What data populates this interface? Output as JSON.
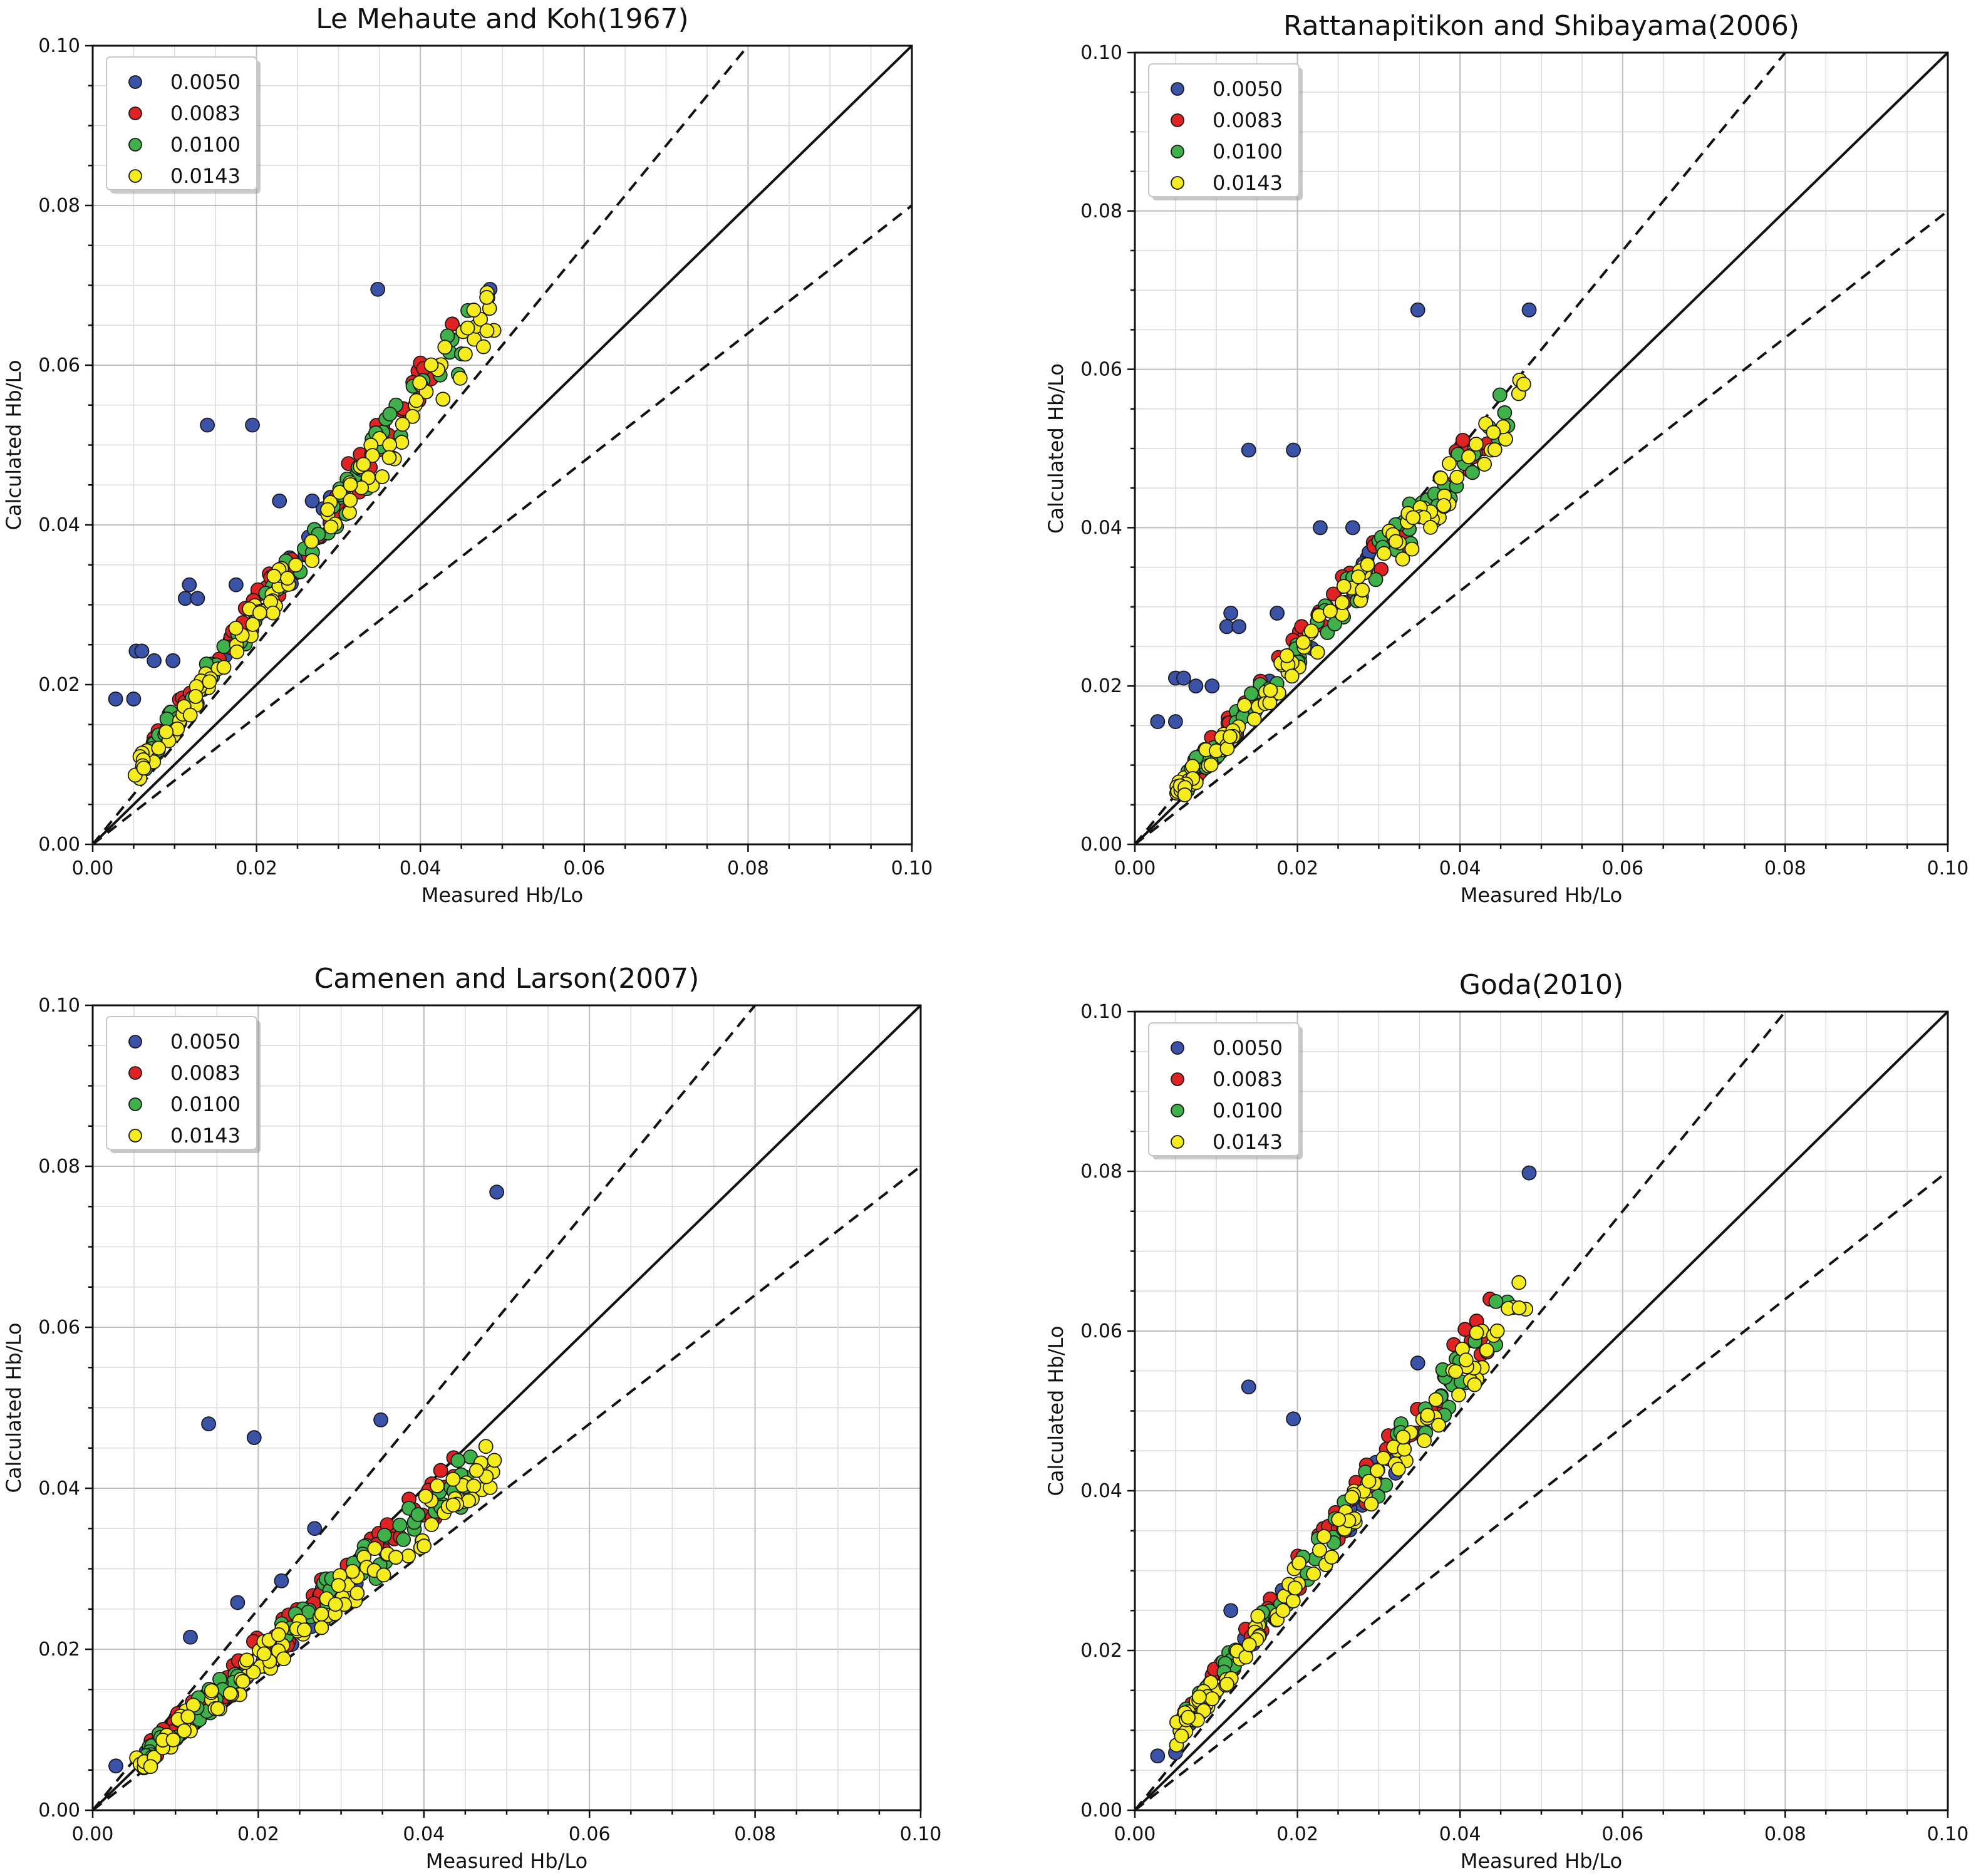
{
  "colors": {
    "s0050": "#3a52a8",
    "s0083": "#e02222",
    "s0100": "#3fb14a",
    "s0143": "#f5ec1e"
  },
  "chart_data": [
    {
      "type": "scatter",
      "title": "Le Mehaute and Koh(1967)",
      "xlabel": "Measured Hb/Lo",
      "ylabel": "Calculated Hb/Lo",
      "xlim": [
        0,
        0.1
      ],
      "ylim": [
        0,
        0.1
      ],
      "x_ticks": [
        "0.00",
        "0.02",
        "0.04",
        "0.06",
        "0.08",
        "0.10"
      ],
      "y_ticks": [
        "0.00",
        "0.02",
        "0.04",
        "0.06",
        "0.08",
        "0.10"
      ],
      "legend": [
        "0.0050",
        "0.0083",
        "0.0100",
        "0.0143"
      ],
      "legend_position": "upper-left",
      "reference_lines": [
        {
          "style": "solid",
          "slope": 1.0
        },
        {
          "style": "dashed",
          "slope": 1.25
        },
        {
          "style": "dashed",
          "slope": 0.8
        }
      ],
      "trend": {
        "slope": 1.35,
        "offset": 0.002
      },
      "outliers": [
        [
          0.0028,
          0.0182
        ],
        [
          0.005,
          0.0182
        ],
        [
          0.0053,
          0.0242
        ],
        [
          0.006,
          0.0242
        ],
        [
          0.0075,
          0.023
        ],
        [
          0.0098,
          0.023
        ],
        [
          0.0118,
          0.0325
        ],
        [
          0.0113,
          0.0308
        ],
        [
          0.0128,
          0.0308
        ],
        [
          0.0175,
          0.0325
        ],
        [
          0.014,
          0.0525
        ],
        [
          0.0195,
          0.0525
        ],
        [
          0.0228,
          0.043
        ],
        [
          0.0268,
          0.043
        ],
        [
          0.0348,
          0.0695
        ],
        [
          0.0485,
          0.0695
        ]
      ],
      "series": [
        {
          "name": "0.0050",
          "count": 22
        },
        {
          "name": "0.0083",
          "count": 70
        },
        {
          "name": "0.0100",
          "count": 80
        },
        {
          "name": "0.0143",
          "count": 110
        }
      ]
    },
    {
      "type": "scatter",
      "title": "Rattanapitikon and Shibayama(2006)",
      "xlabel": "Measured Hb/Lo",
      "ylabel": "Calculated Hb/Lo",
      "xlim": [
        0,
        0.1
      ],
      "ylim": [
        0,
        0.1
      ],
      "x_ticks": [
        "0.00",
        "0.02",
        "0.04",
        "0.06",
        "0.08",
        "0.10"
      ],
      "y_ticks": [
        "0.00",
        "0.02",
        "0.04",
        "0.06",
        "0.08",
        "0.10"
      ],
      "legend": [
        "0.0050",
        "0.0083",
        "0.0100",
        "0.0143"
      ],
      "legend_position": "upper-left",
      "reference_lines": [
        {
          "style": "solid",
          "slope": 1.0
        },
        {
          "style": "dashed",
          "slope": 1.25
        },
        {
          "style": "dashed",
          "slope": 0.8
        }
      ],
      "trend": {
        "slope": 1.18,
        "offset": 0.0005
      },
      "outliers": [
        [
          0.0028,
          0.0155
        ],
        [
          0.005,
          0.0155
        ],
        [
          0.005,
          0.021
        ],
        [
          0.006,
          0.021
        ],
        [
          0.0075,
          0.02
        ],
        [
          0.0095,
          0.02
        ],
        [
          0.0118,
          0.0292
        ],
        [
          0.0113,
          0.0275
        ],
        [
          0.0128,
          0.0275
        ],
        [
          0.0175,
          0.0292
        ],
        [
          0.014,
          0.0498
        ],
        [
          0.0195,
          0.0498
        ],
        [
          0.0228,
          0.04
        ],
        [
          0.0268,
          0.04
        ],
        [
          0.0348,
          0.0675
        ],
        [
          0.0485,
          0.0675
        ]
      ],
      "series": [
        {
          "name": "0.0050",
          "count": 22
        },
        {
          "name": "0.0083",
          "count": 70
        },
        {
          "name": "0.0100",
          "count": 80
        },
        {
          "name": "0.0143",
          "count": 110
        }
      ]
    },
    {
      "type": "scatter",
      "title": "Camenen and Larson(2007)",
      "xlabel": "Measured Hb/Lo",
      "ylabel": "Calculated Hb/Lo",
      "xlim": [
        0,
        0.1
      ],
      "ylim": [
        0,
        0.1
      ],
      "x_ticks": [
        "0.00",
        "0.02",
        "0.04",
        "0.06",
        "0.08",
        "0.10"
      ],
      "y_ticks": [
        "0.00",
        "0.02",
        "0.04",
        "0.06",
        "0.08",
        "0.10"
      ],
      "legend": [
        "0.0050",
        "0.0083",
        "0.0100",
        "0.0143"
      ],
      "legend_position": "upper-left",
      "reference_lines": [
        {
          "style": "solid",
          "slope": 1.0
        },
        {
          "style": "dashed",
          "slope": 1.25
        },
        {
          "style": "dashed",
          "slope": 0.8
        }
      ],
      "trend": {
        "slope": 0.9,
        "offset": 0.0008
      },
      "outliers": [
        [
          0.0028,
          0.0055
        ],
        [
          0.0118,
          0.0215
        ],
        [
          0.0175,
          0.0258
        ],
        [
          0.0228,
          0.0285
        ],
        [
          0.0268,
          0.035
        ],
        [
          0.014,
          0.048
        ],
        [
          0.0195,
          0.0463
        ],
        [
          0.0348,
          0.0485
        ],
        [
          0.0488,
          0.0768
        ]
      ],
      "series": [
        {
          "name": "0.0050",
          "count": 22
        },
        {
          "name": "0.0083",
          "count": 70
        },
        {
          "name": "0.0100",
          "count": 80
        },
        {
          "name": "0.0143",
          "count": 110
        }
      ]
    },
    {
      "type": "scatter",
      "title": "Goda(2010)",
      "xlabel": "Measured Hb/Lo",
      "ylabel": "Calculated Hb/Lo",
      "xlim": [
        0,
        0.1
      ],
      "ylim": [
        0,
        0.1
      ],
      "x_ticks": [
        "0.00",
        "0.02",
        "0.04",
        "0.06",
        "0.08",
        "0.10"
      ],
      "y_ticks": [
        "0.00",
        "0.02",
        "0.04",
        "0.06",
        "0.08",
        "0.10"
      ],
      "legend": [
        "0.0050",
        "0.0083",
        "0.0100",
        "0.0143"
      ],
      "legend_position": "upper-left",
      "reference_lines": [
        {
          "style": "solid",
          "slope": 1.0
        },
        {
          "style": "dashed",
          "slope": 1.25
        },
        {
          "style": "dashed",
          "slope": 0.8
        }
      ],
      "trend": {
        "slope": 1.3,
        "offset": 0.003
      },
      "outliers": [
        [
          0.0028,
          0.0068
        ],
        [
          0.005,
          0.0072
        ],
        [
          0.0118,
          0.025
        ],
        [
          0.014,
          0.053
        ],
        [
          0.0195,
          0.049
        ],
        [
          0.0348,
          0.056
        ],
        [
          0.0268,
          0.039
        ],
        [
          0.0485,
          0.0798
        ]
      ],
      "series": [
        {
          "name": "0.0050",
          "count": 22
        },
        {
          "name": "0.0083",
          "count": 70
        },
        {
          "name": "0.0100",
          "count": 80
        },
        {
          "name": "0.0143",
          "count": 110
        }
      ]
    }
  ]
}
